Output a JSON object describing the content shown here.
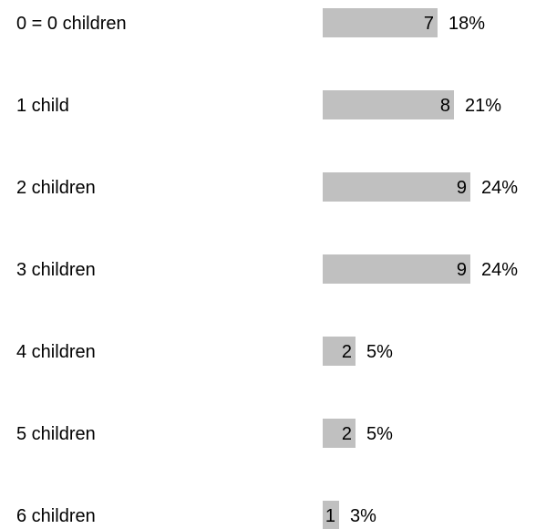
{
  "chart_data": {
    "type": "bar",
    "orientation": "horizontal",
    "categories": [
      "0 = 0 children",
      "1 child",
      "2 children",
      "3 children",
      "4 children",
      "5 children",
      "6 children"
    ],
    "values": [
      7,
      8,
      9,
      9,
      2,
      2,
      1
    ],
    "percent_labels": [
      "18%",
      "21%",
      "24%",
      "24%",
      "5%",
      "5%",
      "3%"
    ],
    "bar_color": "#c0c0c0",
    "grid": false,
    "legend": "none"
  }
}
